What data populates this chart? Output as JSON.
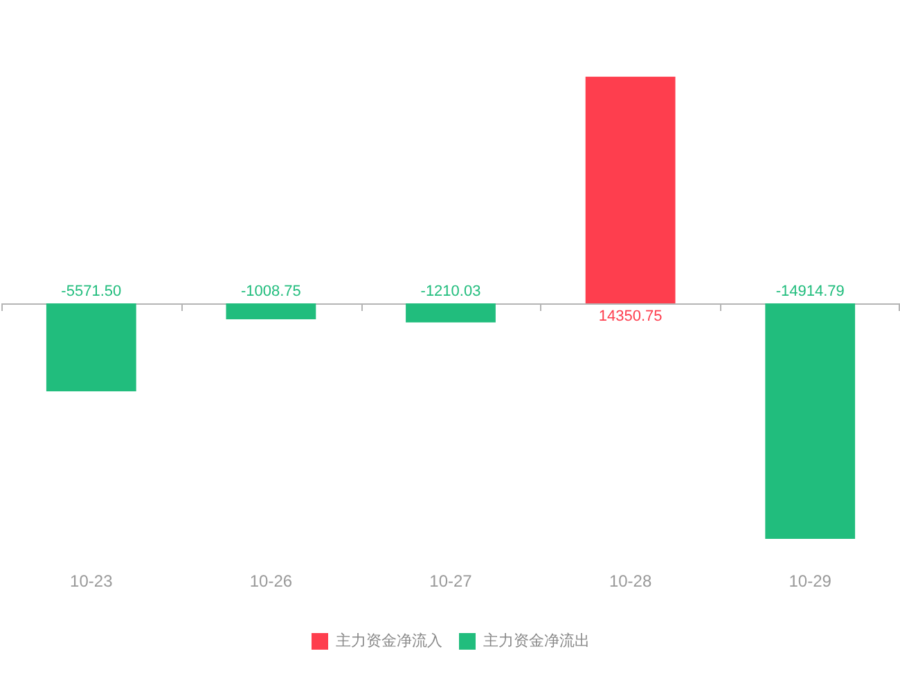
{
  "chart_data": {
    "type": "bar",
    "categories": [
      "10-23",
      "10-26",
      "10-27",
      "10-28",
      "10-29"
    ],
    "series": [
      {
        "name": "主力资金净流入",
        "color": "#fe3e4e",
        "values": [
          null,
          null,
          null,
          14350.75,
          null
        ],
        "value_labels": [
          null,
          null,
          null,
          "14350.75",
          null
        ]
      },
      {
        "name": "主力资金净流出",
        "color": "#21bd7d",
        "values": [
          -5571.5,
          -1008.75,
          -1210.03,
          null,
          -14914.79
        ],
        "value_labels": [
          "-5571.50",
          "-1008.75",
          "-1210.03",
          null,
          "-14914.79"
        ]
      }
    ],
    "tick_labels": "x",
    "grid": false,
    "legend": "bottom"
  }
}
